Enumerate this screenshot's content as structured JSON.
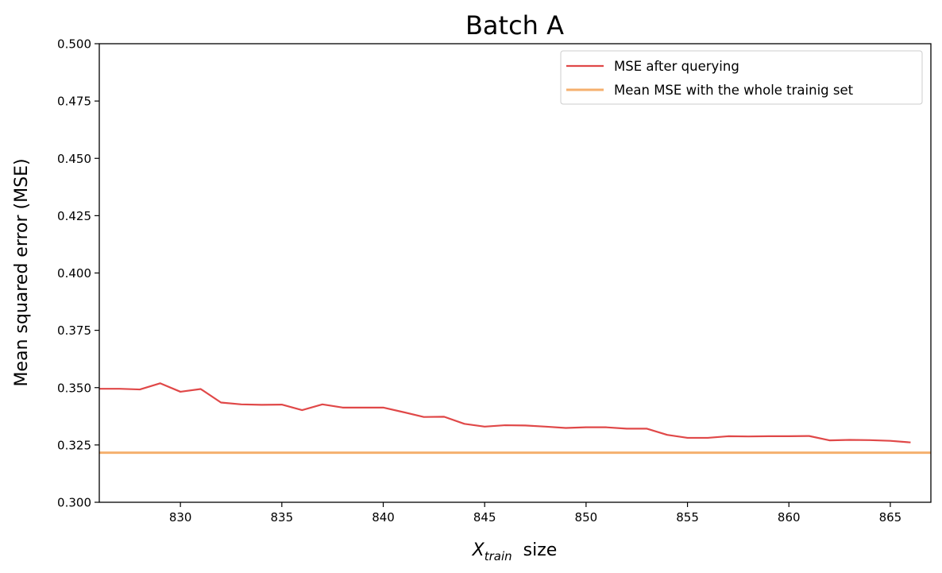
{
  "chart_data": {
    "type": "line",
    "title": "Batch A",
    "xlabel_main": "X",
    "xlabel_sub": "train",
    "xlabel_suffix": "size",
    "ylabel": "Mean squared error (MSE)",
    "xlim": [
      826,
      867
    ],
    "ylim": [
      0.3,
      0.5
    ],
    "xticks": [
      830,
      835,
      840,
      845,
      850,
      855,
      860,
      865
    ],
    "yticks": [
      "0.300",
      "0.325",
      "0.350",
      "0.375",
      "0.400",
      "0.425",
      "0.450",
      "0.475",
      "0.500"
    ],
    "grid": false,
    "legend_position": "top-right",
    "series": [
      {
        "name": "MSE after querying",
        "color": "#e04848",
        "x": [
          826,
          827,
          828,
          829,
          830,
          831,
          832,
          833,
          834,
          835,
          836,
          837,
          838,
          839,
          840,
          841,
          842,
          843,
          844,
          845,
          846,
          847,
          848,
          849,
          850,
          851,
          852,
          853,
          854,
          855,
          856,
          857,
          858,
          859,
          860,
          861,
          862,
          863,
          864,
          865,
          866
        ],
        "y": [
          0.3495,
          0.3495,
          0.3492,
          0.3519,
          0.3482,
          0.3494,
          0.3435,
          0.3427,
          0.3425,
          0.3426,
          0.3402,
          0.3427,
          0.3413,
          0.3413,
          0.3413,
          0.3393,
          0.3372,
          0.3373,
          0.3342,
          0.333,
          0.3336,
          0.3335,
          0.333,
          0.3324,
          0.3327,
          0.3327,
          0.3321,
          0.3321,
          0.3294,
          0.3281,
          0.3281,
          0.3288,
          0.3287,
          0.3288,
          0.3288,
          0.3289,
          0.327,
          0.3272,
          0.3271,
          0.3268,
          0.3261
        ]
      },
      {
        "name": "Mean MSE with the whole trainig set",
        "color": "#f5b06e",
        "constant": 0.3216
      }
    ]
  }
}
